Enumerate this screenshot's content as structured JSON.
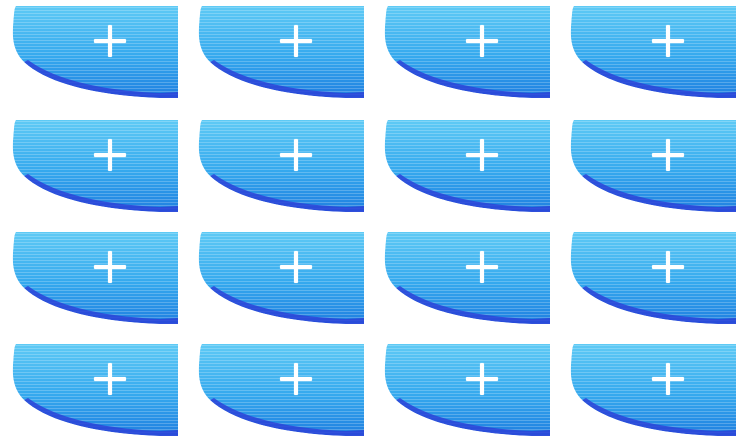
{
  "tiles": [
    {
      "row": 1,
      "col": 1,
      "icon": "plus-icon",
      "action": "add"
    },
    {
      "row": 1,
      "col": 2,
      "icon": "plus-icon",
      "action": "add"
    },
    {
      "row": 1,
      "col": 3,
      "icon": "plus-icon",
      "action": "add"
    },
    {
      "row": 1,
      "col": 4,
      "icon": "plus-icon",
      "action": "add"
    },
    {
      "row": 2,
      "col": 1,
      "icon": "plus-icon",
      "action": "add"
    },
    {
      "row": 2,
      "col": 2,
      "icon": "plus-icon",
      "action": "add"
    },
    {
      "row": 2,
      "col": 3,
      "icon": "plus-icon",
      "action": "add"
    },
    {
      "row": 2,
      "col": 4,
      "icon": "plus-icon",
      "action": "add"
    },
    {
      "row": 3,
      "col": 1,
      "icon": "plus-icon",
      "action": "add"
    },
    {
      "row": 3,
      "col": 2,
      "icon": "plus-icon",
      "action": "add"
    },
    {
      "row": 3,
      "col": 3,
      "icon": "plus-icon",
      "action": "add"
    },
    {
      "row": 3,
      "col": 4,
      "icon": "plus-icon",
      "action": "add"
    },
    {
      "row": 4,
      "col": 1,
      "icon": "plus-icon",
      "action": "add"
    },
    {
      "row": 4,
      "col": 2,
      "icon": "plus-icon",
      "action": "add"
    },
    {
      "row": 4,
      "col": 3,
      "icon": "plus-icon",
      "action": "add"
    },
    {
      "row": 4,
      "col": 4,
      "icon": "plus-icon",
      "action": "add"
    }
  ],
  "colors": {
    "background": "#ffffff",
    "tile_light": "#5fcaf5",
    "tile_mid": "#35a9ee",
    "tile_dark": "#1f7fe0",
    "tile_edge": "#2b43d8",
    "plus": "#ffffff"
  }
}
